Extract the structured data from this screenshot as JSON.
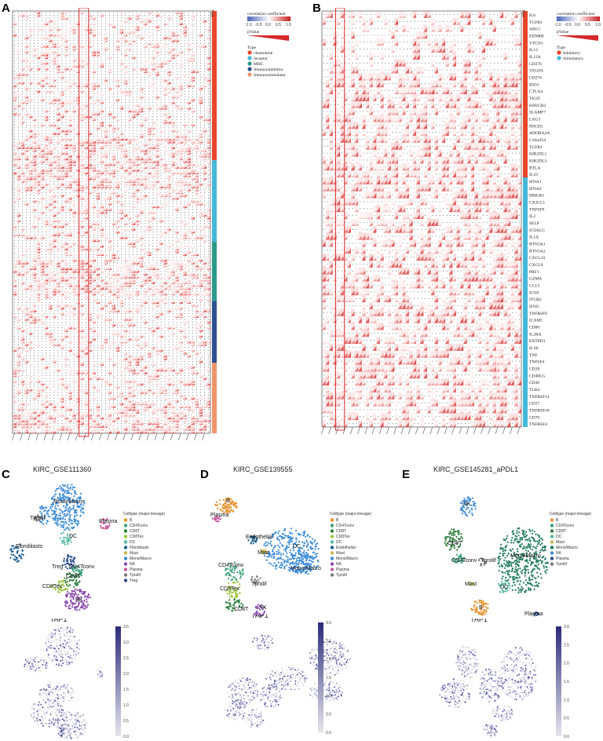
{
  "panels": {
    "A": {
      "label": "A",
      "legend_title": "correlation coefficient",
      "ticks": [
        "-1.0",
        "-0.5",
        "0.0",
        "0.5",
        "1.0"
      ],
      "pvalue_label": "pValue",
      "type_title": "Type",
      "type_items": [
        "chemokine",
        "receptor",
        "MHC",
        "Immunoinhibitor",
        "Immunostimulator"
      ],
      "type_colors": [
        "#e8452a",
        "#45b8d8",
        "#2a9a8a",
        "#2f4f8f",
        "#f0956a"
      ],
      "col_header": "Type"
    },
    "B": {
      "label": "B",
      "legend_title": "correlation coefficient",
      "ticks": [
        "-1.0",
        "-0.5",
        "0.0",
        "0.5",
        "1.0"
      ],
      "pvalue_label": "pValue",
      "type_title": "Type",
      "type_items": [
        "Inhibitory",
        "Stimulatory"
      ],
      "type_colors": [
        "#e8452a",
        "#45b8d8"
      ],
      "col_header": "Type",
      "genes": [
        "IL6",
        "TGFB1",
        "ARG1",
        "EDNRB",
        "VTCN1",
        "IL13",
        "IL12A",
        "CD276",
        "VEGFA",
        "CD274",
        "IDO1",
        "CTLA4",
        "TIGIT",
        "HAVCR2",
        "SLAMF7",
        "LAG3",
        "PDCD1",
        "ADORA2A",
        "C10orf54",
        "TGFB1",
        "KIR2DL1",
        "KIR2DL3",
        "BTLA",
        "IL10",
        "IFNA1",
        "IFNA2",
        "HMGB1",
        "CX3CL1",
        "TNFSF9",
        "IL2",
        "SELP",
        "ICOSLG",
        "IL1A",
        "BTN3A1",
        "BTN3A2",
        "CXCL10",
        "CXCL9",
        "PRF1",
        "GZMA",
        "CCL5",
        "ICOS",
        "ITGB2",
        "IFNG",
        "TNFRSF9",
        "ICAM1",
        "CD80",
        "IL2RA",
        "ENTPD1",
        "IL1B",
        "TNF",
        "TNFSF4",
        "CD28",
        "CD40LG",
        "CD40",
        "TLR4",
        "TNFRSF14",
        "CD27",
        "TNFRSF18",
        "CD70",
        "TNFRSF4"
      ]
    },
    "C": {
      "label": "C",
      "title": "KIRC_GSE111360",
      "legend_title": "Celltype (major-lineage)",
      "celltypes": [
        "B",
        "CD4Tconv",
        "CD8T",
        "CD8Tex",
        "DC",
        "Fibroblasts",
        "Mast",
        "Mono/Macro",
        "NK",
        "Plasma",
        "Tprolif",
        "Treg"
      ],
      "colors": [
        "#e8912b",
        "#3aa07a",
        "#2e7f3f",
        "#9bc53d",
        "#55b7a3",
        "#1e5f8f",
        "#c8b84a",
        "#3a8ad8",
        "#8a4ab0",
        "#c75b9b",
        "#7a7a7a",
        "#2a4a8a"
      ],
      "cluster_labels": [
        "Mono/Macro",
        "Tprolif",
        "DC",
        "Plasma",
        "Fibroblasts",
        "Treg",
        "CD4Tconv",
        "CD8T",
        "CD8Tex",
        "NK"
      ],
      "expr_title": "TAP1",
      "scale_ticks": [
        "3.5",
        "3.0",
        "2.5",
        "2.0",
        "1.5",
        "1.0",
        "0.5",
        "0.0"
      ]
    },
    "D": {
      "label": "D",
      "title": "KIRC_GSE139555",
      "legend_title": "Celltype (major-lineage)",
      "celltypes": [
        "B",
        "CD4Tconv",
        "CD8T",
        "CD8Tex",
        "DC",
        "Endothelial",
        "Mast",
        "Mono/Macro",
        "NK",
        "Plasma",
        "Tprolif"
      ],
      "colors": [
        "#e8912b",
        "#3aa07a",
        "#2e7f3f",
        "#9bc53d",
        "#55b7a3",
        "#1e5f8f",
        "#c8b84a",
        "#3a8ad8",
        "#8a4ab0",
        "#c75b9b",
        "#7a7a7a"
      ],
      "cluster_labels": [
        "B",
        "Plasma",
        "DC",
        "Endothelial",
        "Mast",
        "Mono/Macro",
        "CD4Tconv",
        "Tprolif",
        "CD8Tex",
        "CD8T",
        "NK"
      ],
      "expr_title": "TAP1",
      "scale_ticks": [
        "3.0",
        "2.5",
        "2.0",
        "1.5",
        "1.0",
        "0.5",
        "0.0"
      ]
    },
    "E": {
      "label": "E",
      "title": "KIRC_GSE145281_aPDL1",
      "legend_title": "Celltype (major-lineage)",
      "celltypes": [
        "B",
        "CD4Tconv",
        "CD8T",
        "DC",
        "Mast",
        "Mono/Macro",
        "NK",
        "Plasma",
        "Tprolif"
      ],
      "colors": [
        "#e8912b",
        "#3aa07a",
        "#2e7f3f",
        "#55b7a3",
        "#c8b84a",
        "#1f7a5a",
        "#3a8ad8",
        "#2a4a8a",
        "#7a7a7a"
      ],
      "cluster_labels": [
        "NK",
        "CD8T",
        "CD4Tconv",
        "Tprolif",
        "Mono/Macro",
        "Mast",
        "DC",
        "B",
        "Plasma"
      ],
      "expr_title": "TAP1",
      "scale_ticks": [
        "3.0",
        "2.5",
        "2.0",
        "1.5",
        "1.0",
        "0.5",
        "0.0"
      ]
    }
  }
}
